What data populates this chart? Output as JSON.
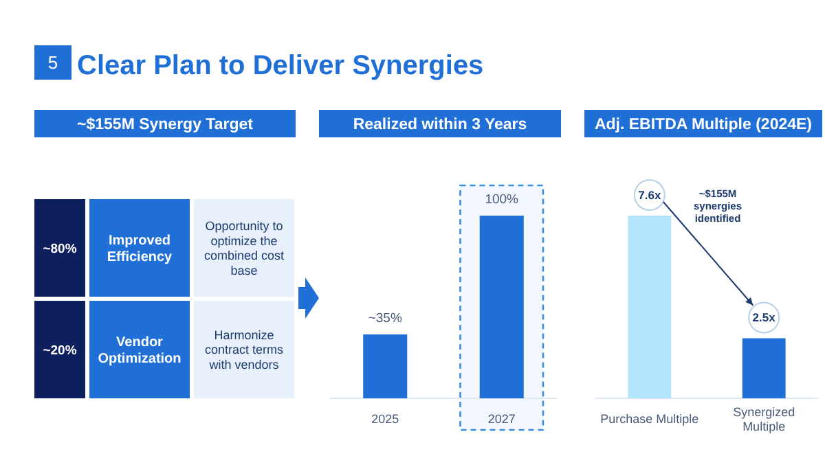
{
  "chart_data": [
    {
      "type": "other",
      "title": "Clear Plan to Deliver Synergies",
      "annotations": [
        "5"
      ]
    },
    {
      "type": "other",
      "title": "~$155M Synergy Target",
      "annotations": [
        "~80%",
        "Improved Efficiency",
        "Opportunity to optimize the combined cost base",
        "~20%",
        "Vendor Optimization",
        "Harmonize contract terms with vendors"
      ]
    },
    {
      "type": "bar",
      "title": "Realized within 3 Years",
      "categories": [
        "2025",
        "2027"
      ],
      "values": [
        35,
        100
      ],
      "color": "#1f6fd6",
      "value_labels": [
        "~35%",
        "100%"
      ],
      "bands": [
        {
          "axis": "x",
          "from": "2027",
          "to": "2027",
          "color": "#3a8ee6"
        }
      ]
    },
    {
      "type": "bar",
      "title": "Adj. EBITDA Multiple (2024E)",
      "categories": [
        "Purchase Multiple",
        "Synergized Multiple"
      ],
      "values": [
        7.6,
        2.5
      ],
      "colors": [
        "#b3e5fc",
        "#1f6fd6"
      ],
      "value_labels": [
        "7.6x",
        "2.5x"
      ],
      "annotations": [
        "~$155M synergies identified"
      ]
    }
  ]
}
